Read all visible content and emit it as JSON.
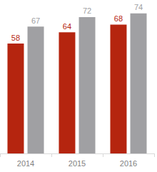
{
  "chart_data": {
    "type": "bar",
    "categories": [
      "2014",
      "2015",
      "2016"
    ],
    "series": [
      {
        "color": "#b5250f",
        "values": [
          58,
          64,
          68
        ]
      },
      {
        "color": "#a0a0a3",
        "values": [
          67,
          72,
          74
        ]
      }
    ],
    "ylim": [
      0,
      75
    ],
    "yticks": [
      0,
      75
    ],
    "grid": false,
    "data_labels": true,
    "tick_labels": "x",
    "legend": false
  }
}
